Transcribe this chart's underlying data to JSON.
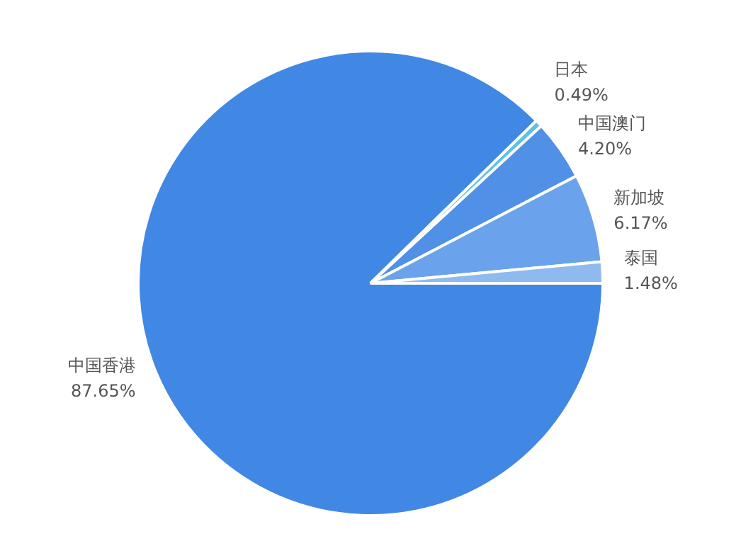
{
  "chart_data": {
    "type": "pie",
    "categories": [
      "中国香港",
      "日本",
      "中国澳门",
      "新加坡",
      "泰国"
    ],
    "values": [
      87.65,
      0.49,
      4.2,
      6.17,
      1.48
    ],
    "colors": [
      "#4088e3",
      "#5cc0ea",
      "#5090e6",
      "#6aa2ec",
      "#8fbaf0"
    ],
    "value_labels": [
      "87.65%",
      "0.49%",
      "4.20%",
      "6.17%",
      "1.48%"
    ],
    "legend": false
  }
}
